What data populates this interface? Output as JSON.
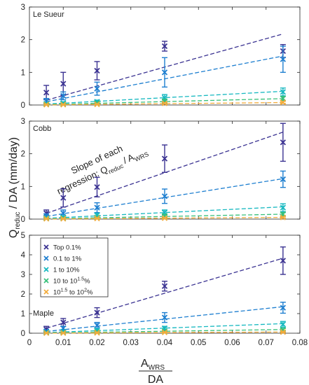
{
  "chart_data": {
    "type": "scatter",
    "ylabel": {
      "main": "Q",
      "sub": "reduc",
      "tail": " / DA (mm/day)"
    },
    "xlabel": {
      "num_main": "A",
      "num_sub": "WRS",
      "den": "DA"
    },
    "xlim": [
      0,
      0.08
    ],
    "x_ticks": [
      "0",
      "0.01",
      "0.02",
      "0.03",
      "0.04",
      "0.05",
      "0.06",
      "0.07",
      "0.08"
    ],
    "x": [
      0.005,
      0.01,
      0.02,
      0.04,
      0.075
    ],
    "series_styles": [
      {
        "color": "#3b3392"
      },
      {
        "color": "#1e7fd0"
      },
      {
        "color": "#16b8c0"
      },
      {
        "color": "#38c07a"
      },
      {
        "color": "#f2ac3c"
      }
    ],
    "legend": {
      "placement": "top-left of bottom panel",
      "items": [
        {
          "parts": [
            {
              "t": "Top 0.1%",
              "sup": false
            }
          ]
        },
        {
          "parts": [
            {
              "t": "0.1 to 1%",
              "sup": false
            }
          ]
        },
        {
          "parts": [
            {
              "t": "1 to 10%",
              "sup": false
            }
          ]
        },
        {
          "parts": [
            {
              "t": "10 to 10",
              "sup": false
            },
            {
              "t": "1.5",
              "sup": true
            },
            {
              "t": "%",
              "sup": false
            }
          ]
        },
        {
          "parts": [
            {
              "t": "10",
              "sup": false
            },
            {
              "t": "1.5",
              "sup": true
            },
            {
              "t": " to 10",
              "sup": false
            },
            {
              "t": "2",
              "sup": true
            },
            {
              "t": "%",
              "sup": false
            }
          ]
        }
      ]
    },
    "annotation": {
      "line1": "Slope of each",
      "line2_pre": "regression: Q",
      "line2_sub1": "reduc",
      "line2_mid": " / A",
      "line2_sub2": "WRS"
    },
    "panels": [
      {
        "title": "Le Sueur",
        "ylim": [
          0,
          3
        ],
        "yticks": [
          "0",
          "1",
          "2",
          "3"
        ],
        "series": [
          {
            "y": [
              0.38,
              0.65,
              1.05,
              1.8,
              1.65
            ],
            "err": [
              0.22,
              0.35,
              0.28,
              0.15,
              0.2
            ],
            "fit_slope": 29
          },
          {
            "y": [
              0.12,
              0.28,
              0.5,
              1.0,
              1.4
            ],
            "err": [
              0.08,
              0.12,
              0.2,
              0.45,
              0.4
            ],
            "fit_slope": 20
          },
          {
            "y": [
              0.04,
              0.06,
              0.1,
              0.22,
              0.4
            ],
            "err": [
              0.03,
              0.04,
              0.05,
              0.1,
              0.12
            ],
            "fit_slope": 5.6
          },
          {
            "y": [
              0.02,
              0.03,
              0.06,
              0.12,
              0.2
            ],
            "err": [
              0.02,
              0.02,
              0.03,
              0.05,
              0.06
            ],
            "fit_slope": 2.6
          },
          {
            "y": [
              0.01,
              0.01,
              0.02,
              0.05,
              0.08
            ],
            "err": [
              0.01,
              0.01,
              0.01,
              0.02,
              0.03
            ],
            "fit_slope": 1.0
          }
        ]
      },
      {
        "title": "Cobb",
        "ylim": [
          0,
          3
        ],
        "yticks": [
          "0",
          "1",
          "2",
          "3"
        ],
        "series": [
          {
            "y": [
              0.18,
              0.65,
              0.98,
              1.85,
              2.35
            ],
            "err": [
              0.1,
              0.28,
              0.3,
              0.42,
              0.58
            ],
            "fit_slope": 35.5
          },
          {
            "y": [
              0.1,
              0.18,
              0.35,
              0.7,
              1.22
            ],
            "err": [
              0.06,
              0.1,
              0.15,
              0.22,
              0.25
            ],
            "fit_slope": 16.5
          },
          {
            "y": [
              0.04,
              0.06,
              0.12,
              0.2,
              0.35
            ],
            "err": [
              0.03,
              0.04,
              0.06,
              0.08,
              0.12
            ],
            "fit_slope": 5.0
          },
          {
            "y": [
              0.02,
              0.03,
              0.05,
              0.1,
              0.15
            ],
            "err": [
              0.02,
              0.02,
              0.03,
              0.04,
              0.05
            ],
            "fit_slope": 2.0
          },
          {
            "y": [
              0.01,
              0.01,
              0.02,
              0.03,
              0.05
            ],
            "err": [
              0.01,
              0.01,
              0.01,
              0.02,
              0.02
            ],
            "fit_slope": 0.7
          }
        ]
      },
      {
        "title": "Maple",
        "ylim": [
          0,
          5
        ],
        "yticks": [
          "0",
          "1",
          "2",
          "3",
          "4",
          "5"
        ],
        "series": [
          {
            "y": [
              0.2,
              0.55,
              1.05,
              2.4,
              3.7
            ],
            "err": [
              0.15,
              0.2,
              0.25,
              0.25,
              0.7
            ],
            "fit_slope": 51
          },
          {
            "y": [
              0.1,
              0.25,
              0.4,
              0.8,
              1.3
            ],
            "err": [
              0.06,
              0.1,
              0.15,
              0.25,
              0.28
            ],
            "fit_slope": 18
          },
          {
            "y": [
              0.05,
              0.08,
              0.15,
              0.25,
              0.45
            ],
            "err": [
              0.04,
              0.05,
              0.08,
              0.1,
              0.15
            ],
            "fit_slope": 6.5
          },
          {
            "y": [
              0.02,
              0.03,
              0.06,
              0.1,
              0.18
            ],
            "err": [
              0.02,
              0.02,
              0.03,
              0.04,
              0.06
            ],
            "fit_slope": 2.5
          },
          {
            "y": [
              0.01,
              0.01,
              0.02,
              0.04,
              0.06
            ],
            "err": [
              0.01,
              0.01,
              0.01,
              0.02,
              0.02
            ],
            "fit_slope": 0.8
          }
        ]
      }
    ]
  }
}
